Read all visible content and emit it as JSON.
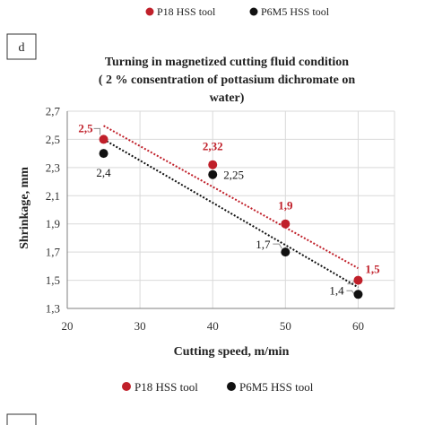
{
  "panel_label": "d",
  "top_legend": [
    "P18 HSS tool",
    "P6M5 HSS tool"
  ],
  "bottom_legend": [
    "P18 HSS tool",
    "P6M5 HSS tool"
  ],
  "colors": {
    "p18": "#c0202a",
    "p6m5": "#111111"
  },
  "chart_data": {
    "type": "scatter",
    "title_lines": [
      "Turning in magnetized cutting fluid  condition",
      "( 2 % consentration of pottasium dichromate on",
      "water)"
    ],
    "xlabel": "Cutting speed, m/min",
    "ylabel": "Shrinkage, mm",
    "xlim": [
      20,
      65
    ],
    "ylim": [
      1.3,
      2.7
    ],
    "x_ticks": [
      "20",
      "30",
      "40",
      "50",
      "60"
    ],
    "y_ticks": [
      "1,3",
      "1,5",
      "1,7",
      "1,9",
      "2,1",
      "2,3",
      "2,5",
      "2,7"
    ],
    "trendlines": "linear, dotted",
    "series": [
      {
        "name": "P18 HSS tool",
        "x": [
          25,
          40,
          50,
          60
        ],
        "y": [
          2.5,
          2.32,
          1.9,
          1.5
        ],
        "labels": [
          "2,5",
          "2,32",
          "1,9",
          "1,5"
        ]
      },
      {
        "name": "P6M5 HSS tool",
        "x": [
          25,
          40,
          50,
          60
        ],
        "y": [
          2.4,
          2.25,
          1.7,
          1.4
        ],
        "labels": [
          "2,4",
          "2,25",
          "1,7",
          "1,4"
        ]
      }
    ]
  }
}
